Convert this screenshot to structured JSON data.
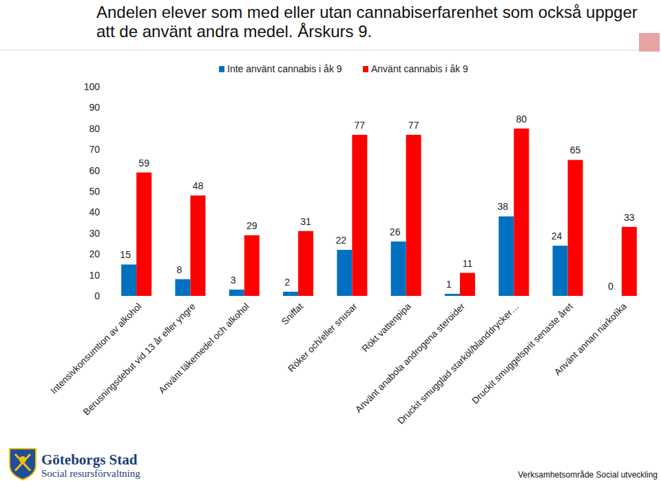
{
  "chart_data": {
    "type": "bar",
    "title": "Andelen elever som med eller utan cannabiserfarenhet som också uppger att de använt andra medel. Årskurs 9.",
    "categories": [
      "Intensivkonsumtion av alkohol",
      "Berusningsdebut vid 13 år eller yngre",
      "Använt läkemedel och alkohol",
      "Sniffat",
      "Röker och/eller snusar",
      "Rökt vattenpipa",
      "Använt anabola androgena steroider",
      "Druckit smugglad starköl/blanddrycker…",
      "Druckit smuggelsprit senaste året",
      "Använt annan narkotika"
    ],
    "series": [
      {
        "name": "Inte använt cannabis i åk 9",
        "color": "#0070c0",
        "values": [
          15,
          8,
          3,
          2,
          22,
          26,
          1,
          38,
          24,
          0
        ]
      },
      {
        "name": "Använt cannabis i åk 9",
        "color": "#ff0000",
        "values": [
          59,
          48,
          29,
          31,
          77,
          77,
          11,
          80,
          65,
          33
        ]
      }
    ],
    "ylim": [
      0,
      100
    ],
    "yticks": [
      0,
      10,
      20,
      30,
      40,
      50,
      60,
      70,
      80,
      90,
      100
    ],
    "grid": false,
    "legend": "top",
    "data_labels": true,
    "annotations": [
      "Göteborgs Stad",
      "Social resursförvaltning",
      "Verksamhetsområde Social utveckling"
    ]
  }
}
